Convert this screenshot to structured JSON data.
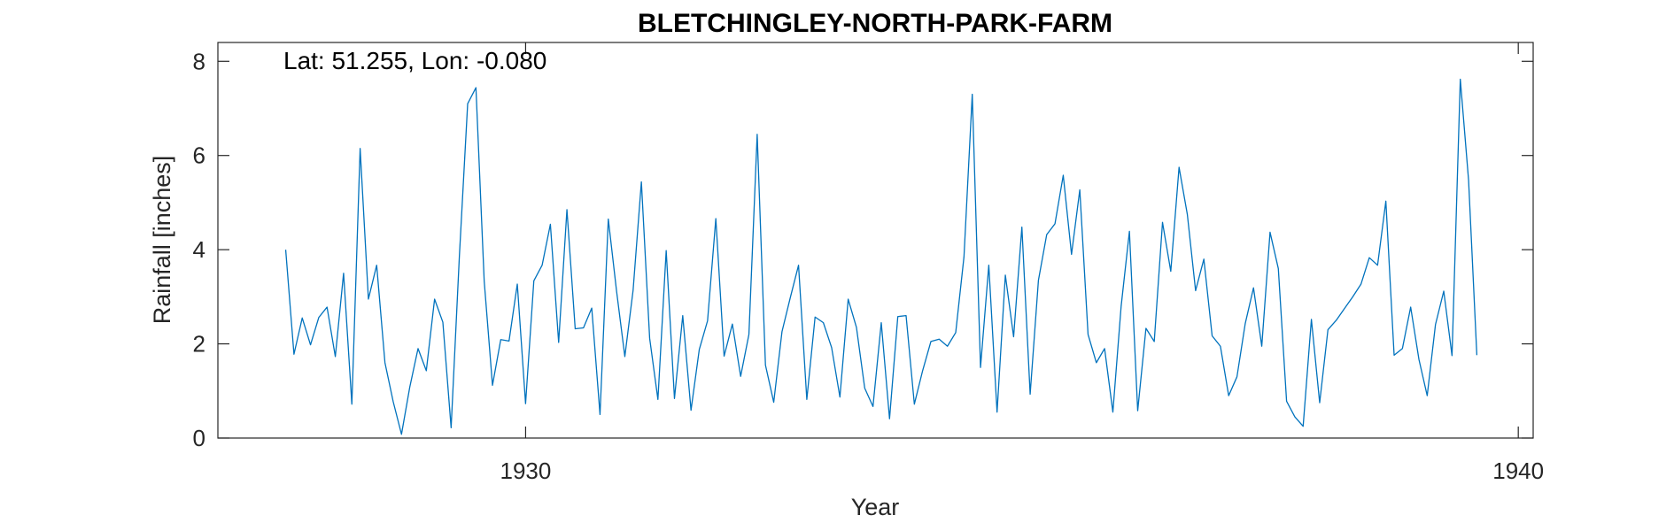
{
  "chart_data": {
    "type": "line",
    "title": "BLETCHINGLEY-NORTH-PARK-FARM",
    "xlabel": "Year",
    "ylabel": "Rainfall [inches]",
    "annotation": "Lat: 51.255, Lon: -0.080",
    "xlim": [
      1926.9,
      1940.15
    ],
    "ylim": [
      0,
      8.4
    ],
    "xticks": [
      1930,
      1940
    ],
    "xtick_labels": [
      "1930",
      "1940"
    ],
    "yticks": [
      0,
      2,
      4,
      6,
      8
    ],
    "ytick_labels": [
      "0",
      "2",
      "4",
      "6",
      "8"
    ],
    "grid": false,
    "line_color": "#0072BD",
    "series": [
      {
        "x_start": 1927.583,
        "x_step": 0.08333,
        "values": [
          4.0,
          1.78,
          2.55,
          1.98,
          2.56,
          2.78,
          1.73,
          3.5,
          0.72,
          6.15,
          2.95,
          3.67,
          1.6,
          0.77,
          0.08,
          1.08,
          1.9,
          1.43,
          2.95,
          2.46,
          0.22,
          3.87,
          7.1,
          7.44,
          3.33,
          1.12,
          2.09,
          2.06,
          3.27,
          0.73,
          3.34,
          3.67,
          4.54,
          2.03,
          4.85,
          2.32,
          2.34,
          2.76,
          0.5,
          4.65,
          3.12,
          1.73,
          3.14,
          5.44,
          2.12,
          0.82,
          3.98,
          0.84,
          2.6,
          0.59,
          1.88,
          2.49,
          4.66,
          1.74,
          2.42,
          1.31,
          2.2,
          6.45,
          1.55,
          0.76,
          2.26,
          2.98,
          3.67,
          0.82,
          2.57,
          2.45,
          1.92,
          0.87,
          2.95,
          2.35,
          1.06,
          0.67,
          2.45,
          0.41,
          2.58,
          2.6,
          0.72,
          1.43,
          2.05,
          2.1,
          1.95,
          2.24,
          3.85,
          7.3,
          1.5,
          3.67,
          0.55,
          3.46,
          2.15,
          4.48,
          0.93,
          3.35,
          4.32,
          4.55,
          5.58,
          3.9,
          5.27,
          2.2,
          1.6,
          1.9,
          0.55,
          2.8,
          4.39,
          0.58,
          2.33,
          2.05,
          4.58,
          3.54,
          5.75,
          4.75,
          3.13,
          3.8,
          2.17,
          1.95,
          0.9,
          1.3,
          2.43,
          3.19,
          1.95,
          4.37,
          3.6,
          0.78,
          0.45,
          0.25,
          2.52,
          0.75,
          2.3,
          2.5,
          2.75,
          3.0,
          3.27,
          3.83,
          3.67,
          5.03,
          1.76,
          1.9,
          2.78,
          1.67,
          0.9,
          2.41,
          3.12,
          1.75,
          7.62,
          5.48,
          1.76
        ]
      }
    ]
  }
}
